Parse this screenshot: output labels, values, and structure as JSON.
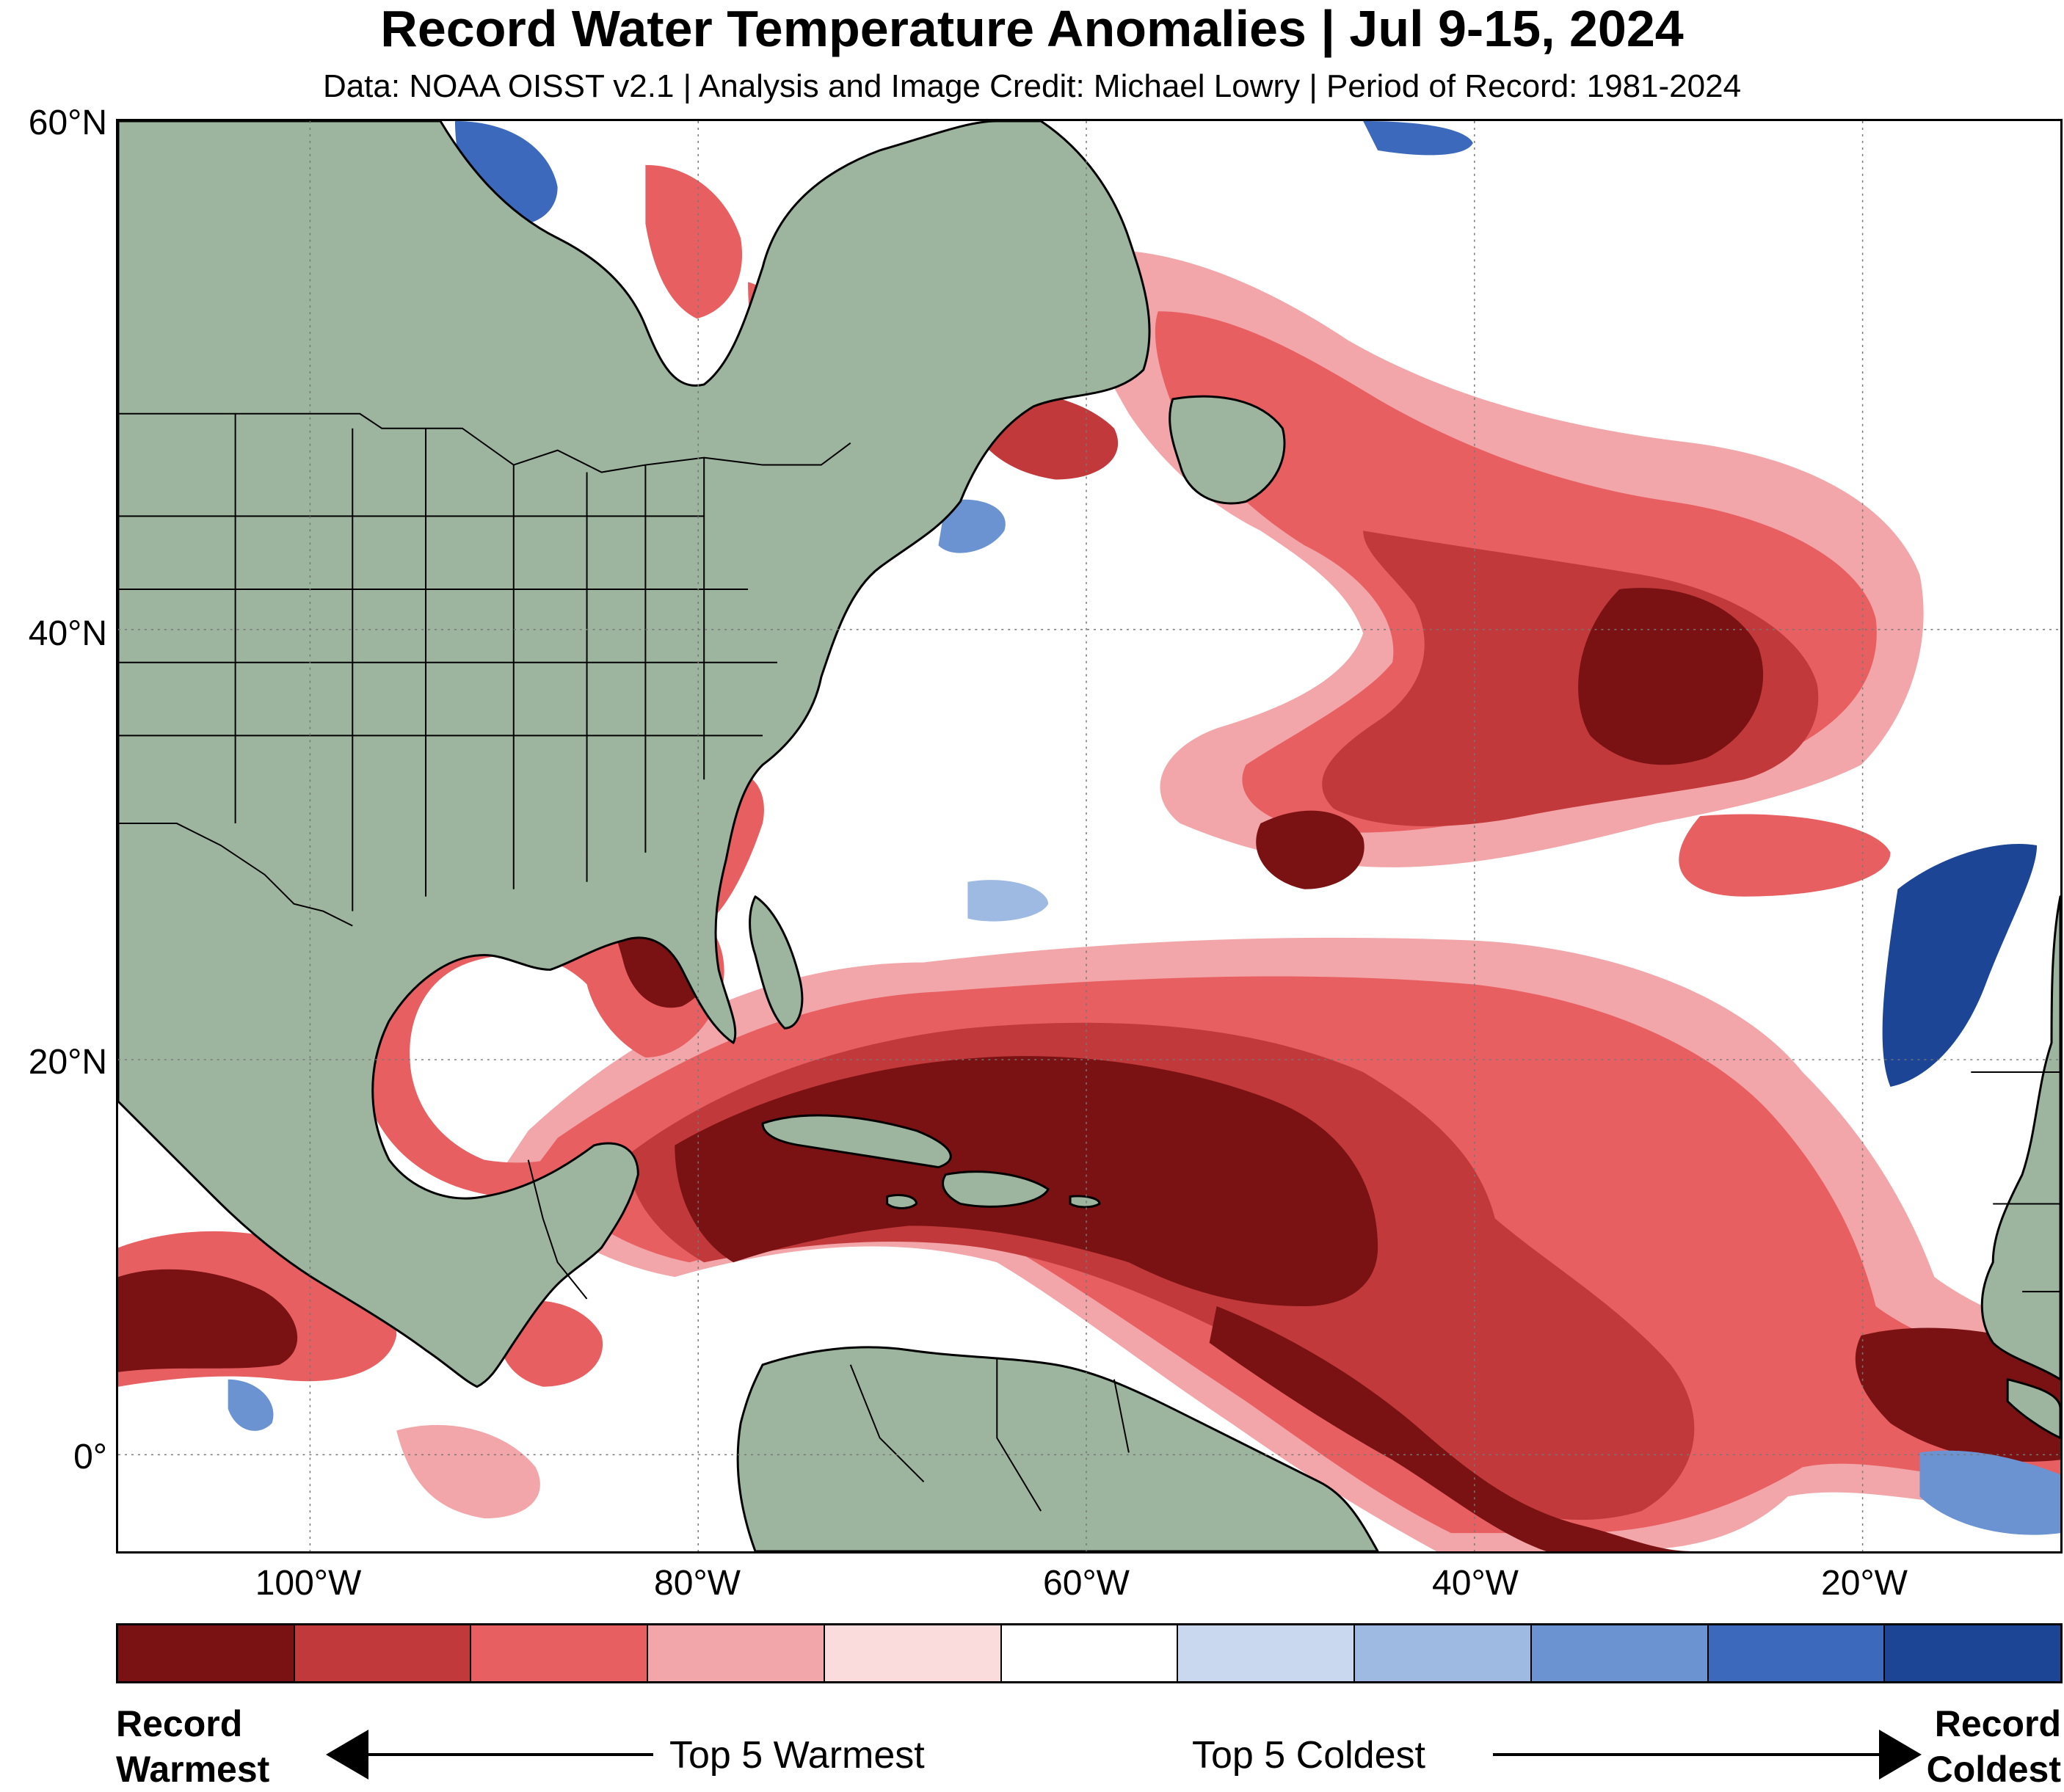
{
  "title": "Record Water Temperature Anomalies | Jul 9-15, 2024",
  "subtitle": "Data: NOAA OISST v2.1 | Analysis and Image Credit: Michael Lowry | Period of Record: 1981-2024",
  "map": {
    "extent": {
      "lon": [
        -110,
        -10
      ],
      "lat": [
        -5,
        60
      ]
    },
    "land_color": "#9db59e",
    "ocean_color": "#ffffff",
    "lat_ticks": [
      "60°N",
      "40°N",
      "20°N",
      "0°"
    ],
    "lon_ticks": [
      "100°W",
      "80°W",
      "60°W",
      "40°W",
      "20°W"
    ],
    "grid": "dotted"
  },
  "legend": {
    "colors": [
      "#7a1214",
      "#c2393b",
      "#e85f62",
      "#f2a6a9",
      "#fadcdd",
      "#ffffff",
      "#c9d8ef",
      "#9ebae3",
      "#6b93d2",
      "#3c69bb",
      "#1c4596"
    ],
    "left_label_line1": "Record",
    "left_label_line2": "Warmest",
    "right_label_line1": "Record",
    "right_label_line2": "Coldest",
    "warm_text": "Top 5 Warmest",
    "cold_text": "Top 5 Coldest"
  }
}
